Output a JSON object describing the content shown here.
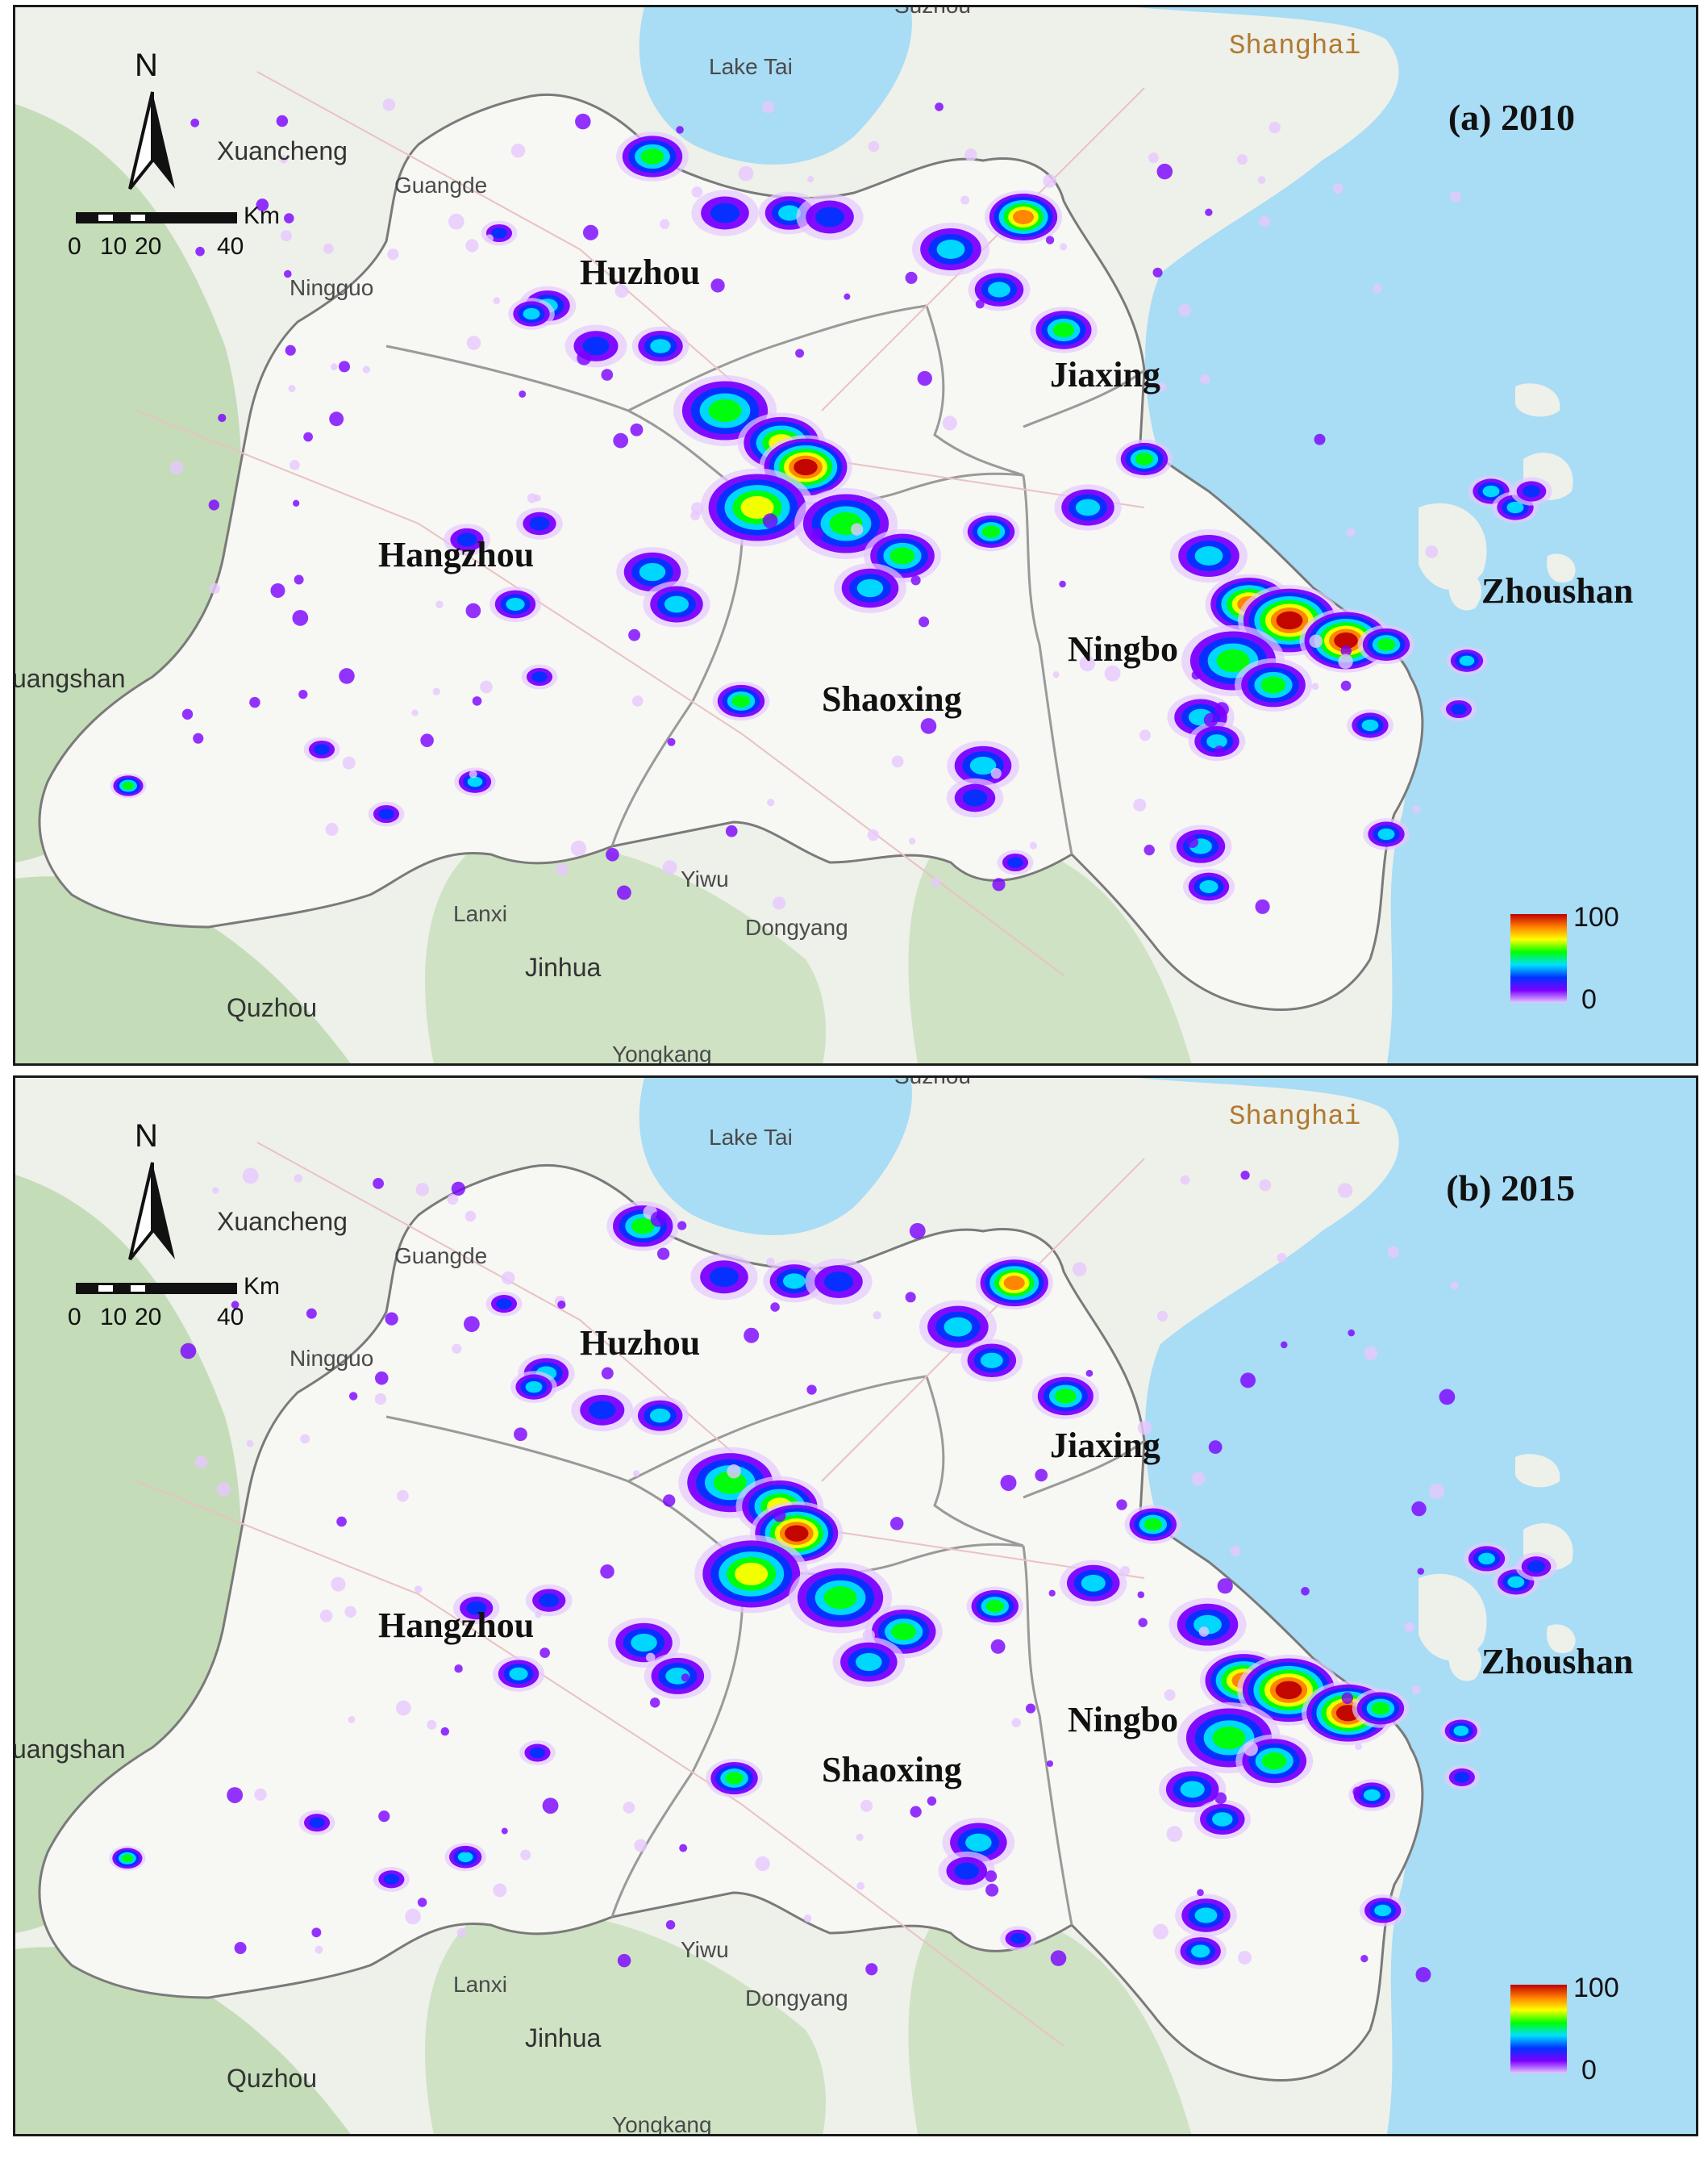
{
  "colors": {
    "water": "#a9dcf5",
    "land": "#eef0ea",
    "forest": "#b9d6ad",
    "study_area": "#f7f7f4",
    "boundary": "#7a7a7a",
    "shanghai_label": "#b07a30"
  },
  "compass": {
    "letter": "N",
    "icon": "north-arrow-icon"
  },
  "scale_bar": {
    "unit": "Km",
    "ticks": [
      "0",
      "10",
      "20",
      "40"
    ]
  },
  "legend": {
    "max": "100",
    "min": "0",
    "ramp": [
      "#c00000",
      "#ff7f00",
      "#ffff00",
      "#00ff00",
      "#00e0ff",
      "#0033ff",
      "#7b00ff",
      "#e6c8ff"
    ]
  },
  "city_labels": [
    "Huzhou",
    "Jiaxing",
    "Hangzhou",
    "Ningbo",
    "Shaoxing",
    "Zhoushan"
  ],
  "base_labels": {
    "lake": "Lake Tai",
    "shanghai": "Shanghai",
    "xuancheng": "Xuancheng",
    "guangde": "Guangde",
    "ningguo": "Ningguo",
    "huangshan_part": "uangshan",
    "lanxi": "Lanxi",
    "yiwu": "Yiwu",
    "dongyang": "Dongyang",
    "jinhua": "Jinhua",
    "quzhou": "Quzhou",
    "yongkang": "Yongkang",
    "suzhou_part": "Suzhou"
  },
  "panels": [
    {
      "title": "(a) 2010"
    },
    {
      "title": "(b) 2015"
    }
  ]
}
